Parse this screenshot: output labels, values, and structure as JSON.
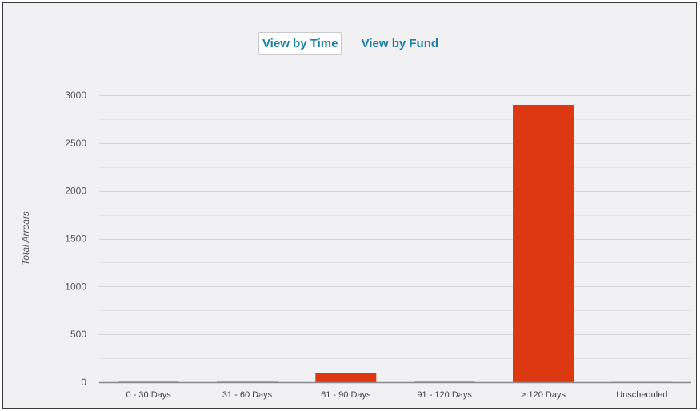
{
  "toggle": {
    "time_label": "View by Time",
    "fund_label": "View by Fund",
    "active": "time"
  },
  "chart_data": {
    "type": "bar",
    "categories": [
      "0 - 30 Days",
      "31 - 60 Days",
      "61 - 90 Days",
      "91 - 120 Days",
      "> 120 Days",
      "Unscheduled"
    ],
    "values": [
      5,
      5,
      100,
      5,
      2900,
      3
    ],
    "xlabel": "",
    "ylabel": "Total Arrears",
    "ylim": [
      0,
      3000
    ],
    "yticks": [
      0,
      500,
      1000,
      1500,
      2000,
      2500,
      3000
    ],
    "ytick_labels": [
      "0",
      "500",
      "1000",
      "1500",
      "2000",
      "2500",
      "3000"
    ],
    "grid": true,
    "legend": "none",
    "bar_color": "#dc3912"
  }
}
